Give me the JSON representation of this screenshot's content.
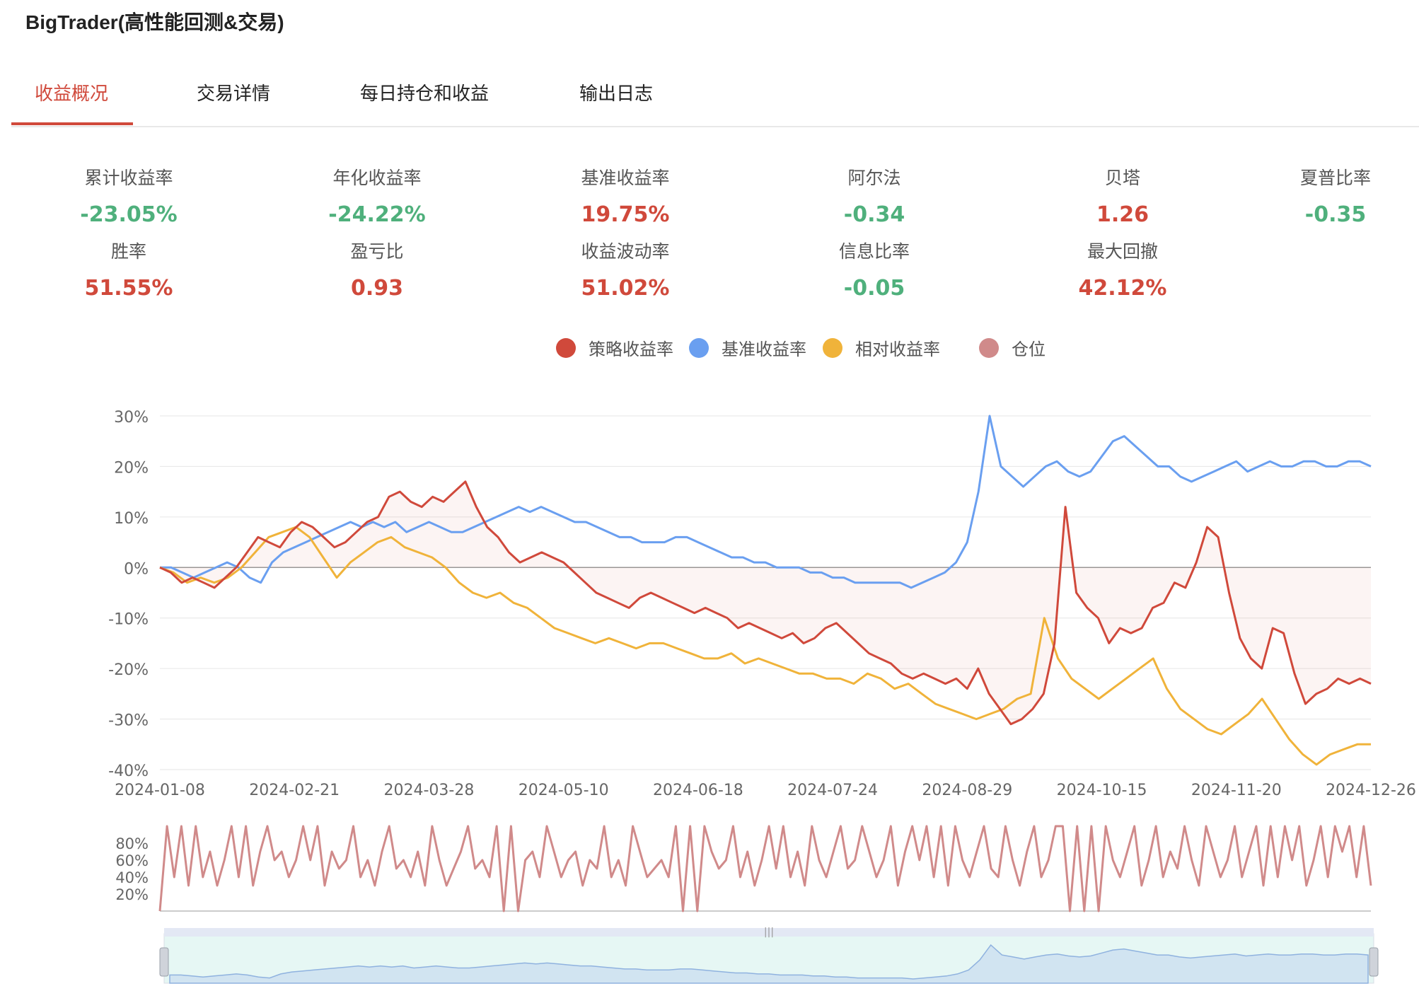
{
  "app": {
    "title": "BigTrader(高性能回测&交易)"
  },
  "tabs": [
    {
      "label": "收益概况",
      "active": true
    },
    {
      "label": "交易详情",
      "active": false
    },
    {
      "label": "每日持仓和收益",
      "active": false
    },
    {
      "label": "输出日志",
      "active": false
    }
  ],
  "metrics": [
    {
      "label": "累计收益率",
      "value": "-23.05%",
      "color": "green"
    },
    {
      "label": "年化收益率",
      "value": "-24.22%",
      "color": "green"
    },
    {
      "label": "基准收益率",
      "value": "19.75%",
      "color": "red"
    },
    {
      "label": "阿尔法",
      "value": "-0.34",
      "color": "green"
    },
    {
      "label": "贝塔",
      "value": "1.26",
      "color": "red"
    },
    {
      "label": "夏普比率",
      "value": "-0.35",
      "color": "green"
    },
    {
      "label": "胜率",
      "value": "51.55%",
      "color": "red"
    },
    {
      "label": "盈亏比",
      "value": "0.93",
      "color": "red"
    },
    {
      "label": "收益波动率",
      "value": "51.02%",
      "color": "red"
    },
    {
      "label": "信息比率",
      "value": "-0.05",
      "color": "green"
    },
    {
      "label": "最大回撤",
      "value": "42.12%",
      "color": "red"
    }
  ],
  "colors": {
    "strategy": "#d0493b",
    "benchmark": "#6a9ff0",
    "relative": "#f0b33a",
    "position": "#d08a8a",
    "green": "#4fb07c",
    "red": "#d0493b"
  },
  "chart_data": [
    {
      "type": "line",
      "x_tick_labels": [
        "2024-01-08",
        "2024-02-21",
        "2024-03-28",
        "2024-05-10",
        "2024-06-18",
        "2024-07-24",
        "2024-08-29",
        "2024-10-15",
        "2024-11-20",
        "2024-12-26"
      ],
      "y_tick_labels": [
        "30%",
        "20%",
        "10%",
        "0%",
        "-10%",
        "-20%",
        "-30%",
        "-40%"
      ],
      "ylim": [
        -40,
        30
      ],
      "legend_position": "top-center",
      "grid": true,
      "series": [
        {
          "name": "策略收益率",
          "color_key": "strategy",
          "values": [
            0,
            -1,
            -3,
            -2,
            -3,
            -4,
            -2,
            0,
            3,
            6,
            5,
            4,
            7,
            9,
            8,
            6,
            4,
            5,
            7,
            9,
            10,
            14,
            15,
            13,
            12,
            14,
            13,
            15,
            17,
            12,
            8,
            6,
            3,
            1,
            2,
            3,
            2,
            1,
            -1,
            -3,
            -5,
            -6,
            -7,
            -8,
            -6,
            -5,
            -6,
            -7,
            -8,
            -9,
            -8,
            -9,
            -10,
            -12,
            -11,
            -12,
            -13,
            -14,
            -13,
            -15,
            -14,
            -12,
            -11,
            -13,
            -15,
            -17,
            -18,
            -19,
            -21,
            -22,
            -21,
            -22,
            -23,
            -22,
            -24,
            -20,
            -25,
            -28,
            -31,
            -30,
            -28,
            -25,
            -15,
            12,
            -5,
            -8,
            -10,
            -15,
            -12,
            -13,
            -12,
            -8,
            -7,
            -3,
            -4,
            1,
            8,
            6,
            -5,
            -14,
            -18,
            -20,
            -12,
            -13,
            -21,
            -27,
            -25,
            -24,
            -22,
            -23,
            -22,
            -23
          ]
        },
        {
          "name": "基准收益率",
          "color_key": "benchmark",
          "values": [
            0,
            0,
            -1,
            -2,
            -1,
            0,
            1,
            0,
            -2,
            -3,
            1,
            3,
            4,
            5,
            6,
            7,
            8,
            9,
            8,
            9,
            8,
            9,
            7,
            8,
            9,
            8,
            7,
            7,
            8,
            9,
            10,
            11,
            12,
            11,
            12,
            11,
            10,
            9,
            9,
            8,
            7,
            6,
            6,
            5,
            5,
            5,
            6,
            6,
            5,
            4,
            3,
            2,
            2,
            1,
            1,
            0,
            0,
            0,
            -1,
            -1,
            -2,
            -2,
            -3,
            -3,
            -3,
            -3,
            -3,
            -4,
            -3,
            -2,
            -1,
            1,
            5,
            15,
            30,
            20,
            18,
            16,
            18,
            20,
            21,
            19,
            18,
            19,
            22,
            25,
            26,
            24,
            22,
            20,
            20,
            18,
            17,
            18,
            19,
            20,
            21,
            19,
            20,
            21,
            20,
            20,
            21,
            21,
            20,
            20,
            21,
            21,
            20
          ]
        },
        {
          "name": "相对收益率",
          "color_key": "relative",
          "values": [
            0,
            -1,
            -3,
            -2,
            -3,
            -2,
            0,
            3,
            6,
            7,
            8,
            6,
            2,
            -2,
            1,
            3,
            5,
            6,
            4,
            3,
            2,
            0,
            -3,
            -5,
            -6,
            -5,
            -7,
            -8,
            -10,
            -12,
            -13,
            -14,
            -15,
            -14,
            -15,
            -16,
            -15,
            -15,
            -16,
            -17,
            -18,
            -18,
            -17,
            -19,
            -18,
            -19,
            -20,
            -21,
            -21,
            -22,
            -22,
            -23,
            -21,
            -22,
            -24,
            -23,
            -25,
            -27,
            -28,
            -29,
            -30,
            -29,
            -28,
            -26,
            -25,
            -10,
            -18,
            -22,
            -24,
            -26,
            -24,
            -22,
            -20,
            -18,
            -24,
            -28,
            -30,
            -32,
            -33,
            -31,
            -29,
            -26,
            -30,
            -34,
            -37,
            -39,
            -37,
            -36,
            -35,
            -35
          ]
        }
      ]
    },
    {
      "type": "line",
      "name": "仓位",
      "color_key": "position",
      "y_tick_labels": [
        "80%",
        "60%",
        "40%",
        "20%"
      ],
      "ylim": [
        0,
        100
      ],
      "values": [
        0,
        100,
        40,
        100,
        30,
        100,
        40,
        70,
        30,
        60,
        100,
        40,
        100,
        30,
        70,
        100,
        60,
        70,
        40,
        60,
        100,
        60,
        100,
        30,
        70,
        50,
        60,
        100,
        40,
        60,
        30,
        70,
        100,
        50,
        60,
        40,
        70,
        30,
        100,
        60,
        30,
        50,
        70,
        100,
        50,
        60,
        40,
        100,
        0,
        100,
        0,
        60,
        70,
        40,
        100,
        70,
        40,
        60,
        70,
        30,
        60,
        50,
        100,
        40,
        60,
        30,
        100,
        70,
        40,
        50,
        60,
        40,
        100,
        0,
        100,
        0,
        100,
        70,
        50,
        60,
        100,
        40,
        70,
        30,
        60,
        100,
        50,
        100,
        40,
        70,
        30,
        100,
        60,
        40,
        70,
        100,
        50,
        60,
        100,
        70,
        40,
        60,
        100,
        30,
        70,
        100,
        60,
        100,
        40,
        100,
        30,
        100,
        60,
        40,
        70,
        100,
        50,
        40,
        100,
        60,
        30,
        70,
        100,
        40,
        60,
        100,
        100,
        0,
        100,
        0,
        100,
        0,
        100,
        60,
        40,
        70,
        100,
        30,
        60,
        100,
        40,
        70,
        50,
        100,
        60,
        30,
        100,
        70,
        40,
        60,
        100,
        40,
        70,
        100,
        30,
        100,
        40,
        100,
        60,
        100,
        30,
        60,
        100,
        40,
        100,
        70,
        100,
        40,
        100,
        30
      ]
    }
  ]
}
